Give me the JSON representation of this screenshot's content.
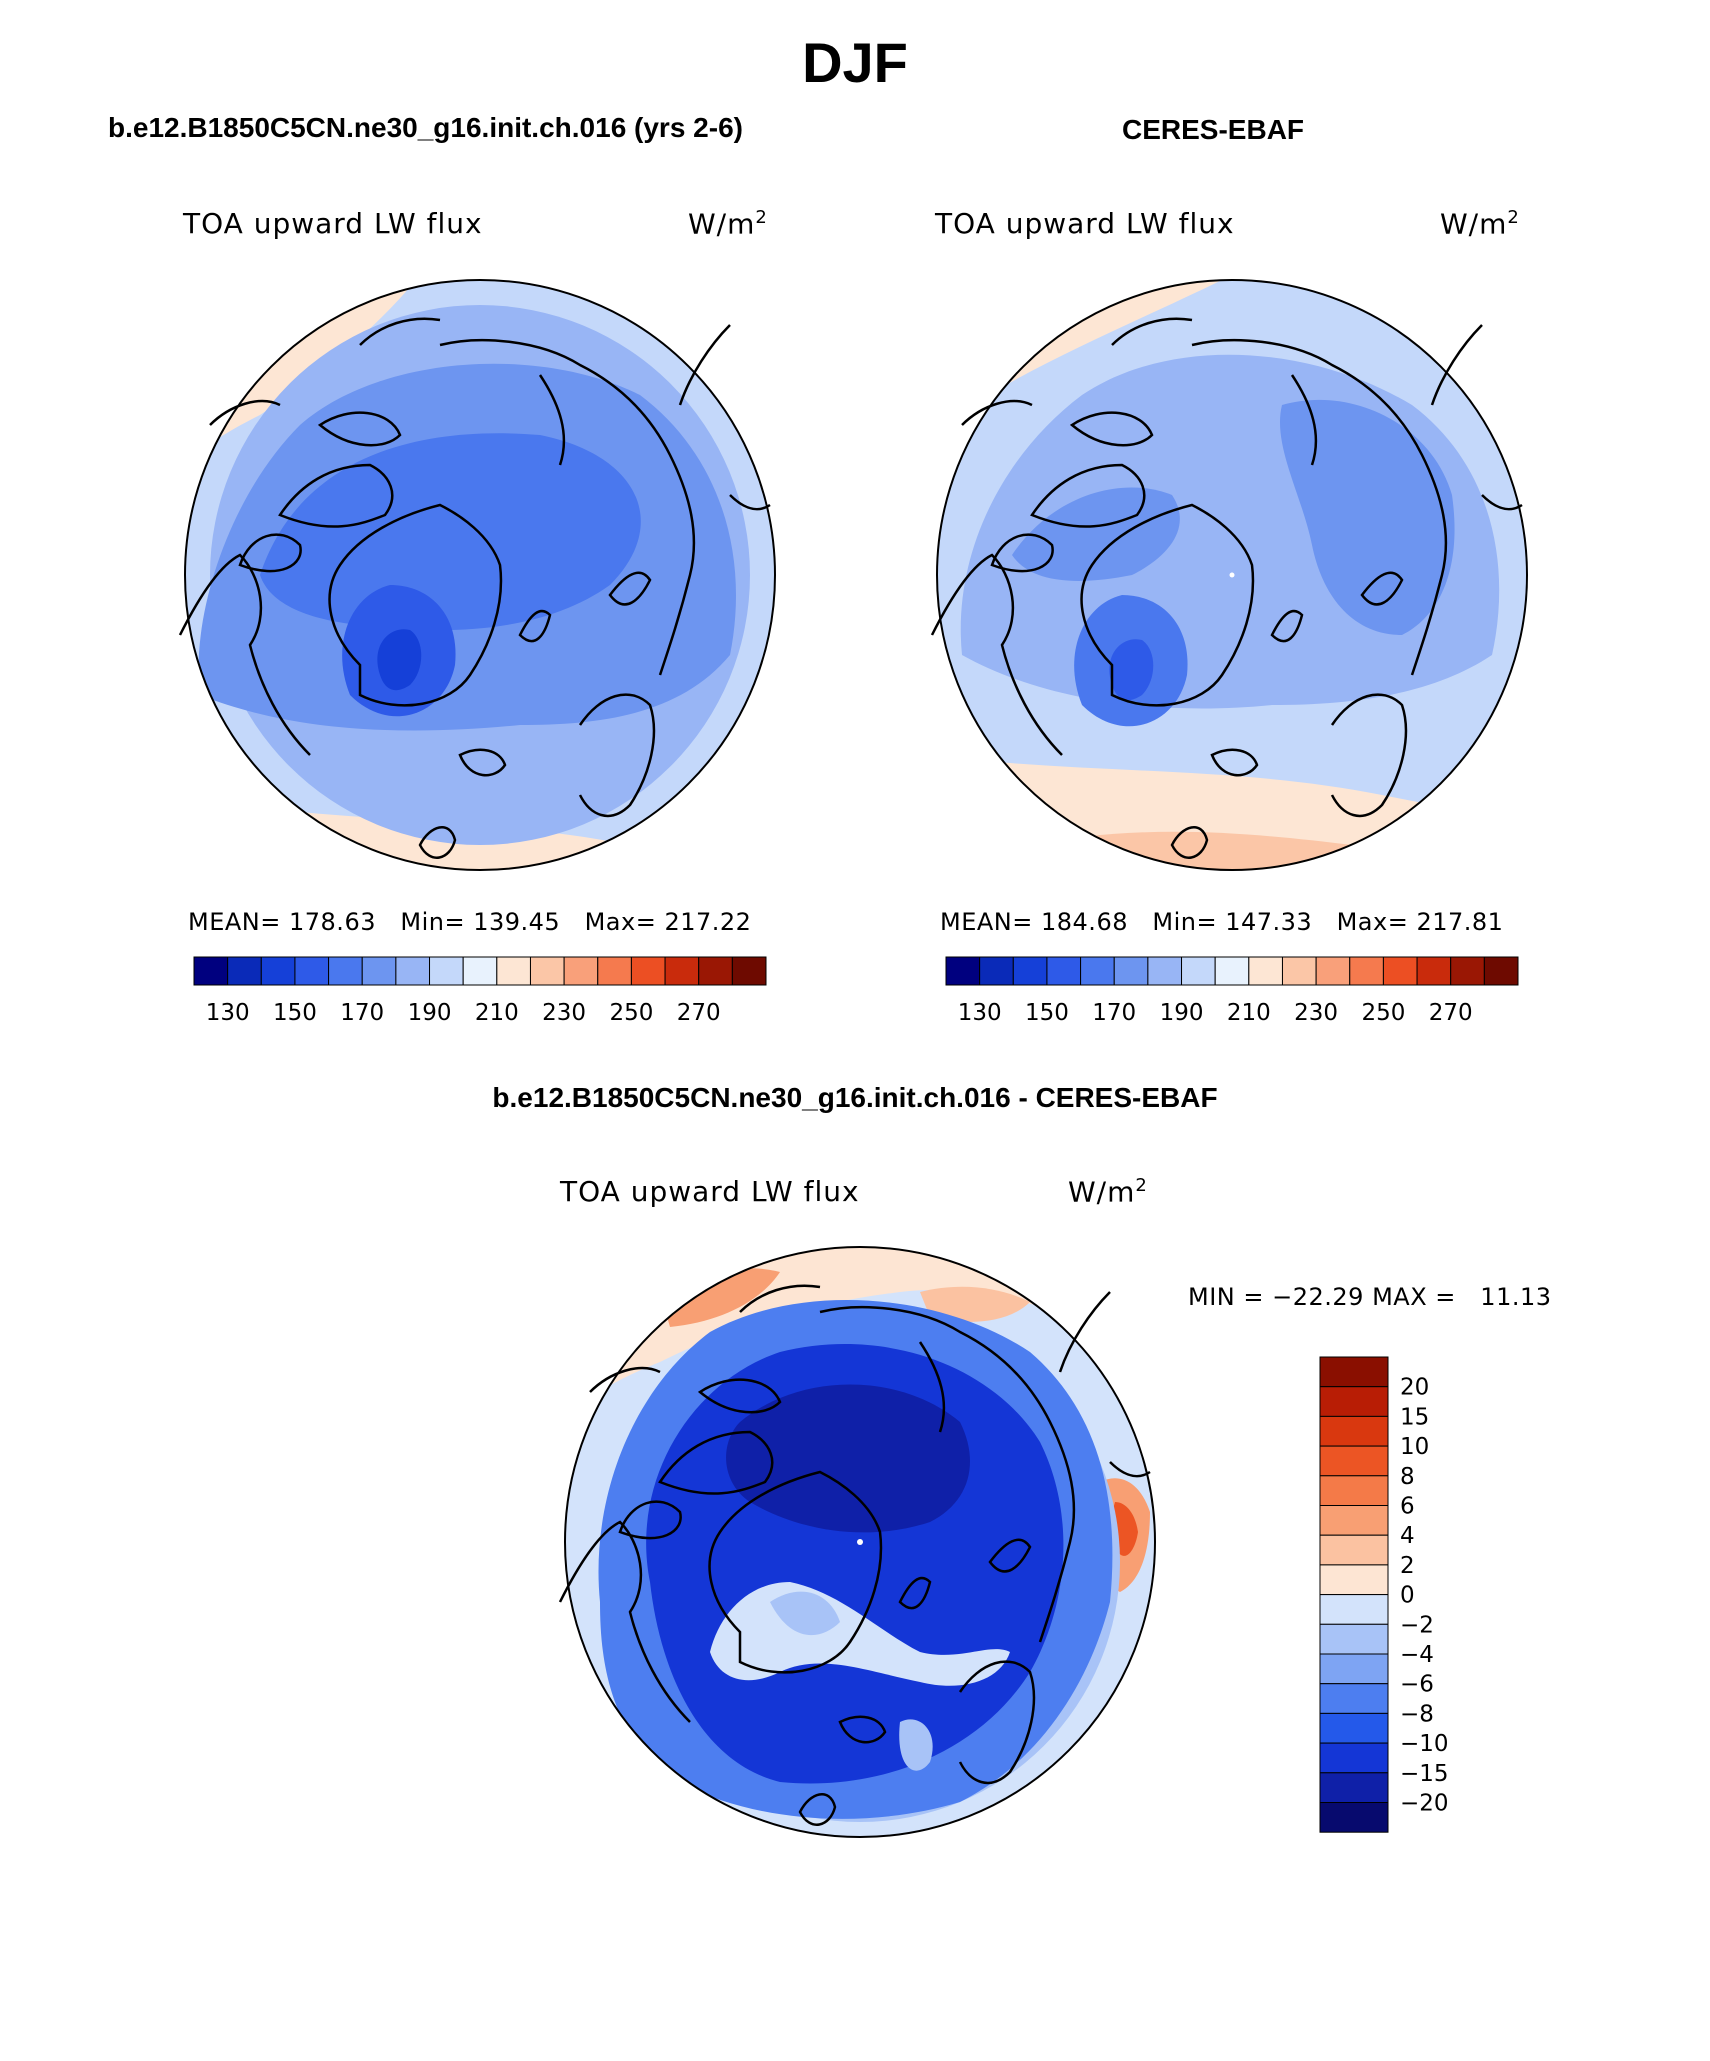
{
  "title": "DJF",
  "colors": {
    "scale": [
      "#00007f",
      "#0a2ab8",
      "#1540d8",
      "#2e5ae8",
      "#4a78ee",
      "#6d95f0",
      "#98b5f5",
      "#c4d8fa",
      "#e8f2fd",
      "#fde6d4",
      "#fbc6a7",
      "#f9a07a",
      "#f57a4e",
      "#ec4f23",
      "#c92b0c",
      "#9a1704",
      "#6e0a00"
    ],
    "diff": [
      "#070a6e",
      "#0f20a8",
      "#1436d6",
      "#2459ea",
      "#4d7ef0",
      "#7ea4f3",
      "#a8c3f7",
      "#d3e3fb",
      "#fde5d3",
      "#fbc2a1",
      "#f89f73",
      "#f47a48",
      "#ec5524",
      "#cc2e0b",
      "#8a0f00"
    ],
    "coast": "#000000"
  },
  "panels": [
    {
      "title": "b.e12.B1850C5CN.ne30_g16.init.ch.016 (yrs 2-6)",
      "variable": "TOA upward LW flux",
      "units_base": "W/m",
      "units_sup": "2",
      "stats": {
        "mean_label": "MEAN=",
        "mean": "178.63",
        "min_label": "Min=",
        "min": "139.45",
        "max_label": "Max=",
        "max": "217.22"
      },
      "ticks": [
        "130",
        "150",
        "170",
        "190",
        "210",
        "230",
        "250",
        "270"
      ]
    },
    {
      "title": "CERES-EBAF",
      "variable": "TOA upward LW flux",
      "units_base": "W/m",
      "units_sup": "2",
      "stats": {
        "mean_label": "MEAN=",
        "mean": "184.68",
        "min_label": "Min=",
        "min": "147.33",
        "max_label": "Max=",
        "max": "217.81"
      },
      "ticks": [
        "130",
        "150",
        "170",
        "190",
        "210",
        "230",
        "250",
        "270"
      ]
    }
  ],
  "diff_panel": {
    "title": "b.e12.B1850C5CN.ne30_g16.init.ch.016 - CERES-EBAF",
    "variable": "TOA upward LW flux",
    "units_base": "W/m",
    "units_sup": "2",
    "min_label": "MIN =",
    "min": "−22.29",
    "max_label": "MAX =",
    "max": "11.13",
    "levels": [
      "20",
      "15",
      "10",
      "8",
      "6",
      "4",
      "2",
      "0",
      "−2",
      "−4",
      "−6",
      "−8",
      "−10",
      "−15",
      "−20"
    ]
  }
}
